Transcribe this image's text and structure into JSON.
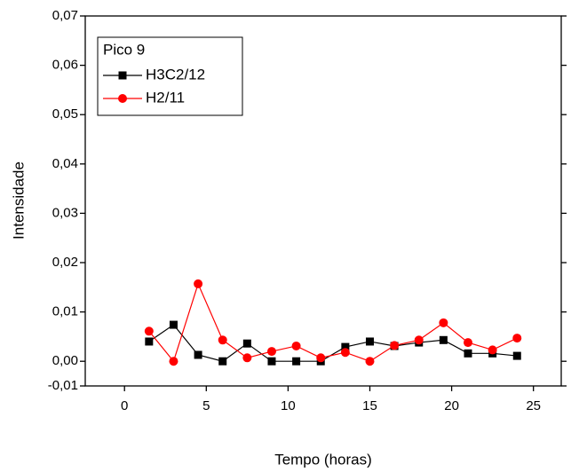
{
  "chart_data": {
    "type": "line",
    "x_label": "Tempo (horas)",
    "y_label": "Intensidade",
    "legend_title": "Pico 9",
    "legend": "top-left",
    "x": [
      1.5,
      3,
      4.5,
      6,
      7.5,
      9,
      10.5,
      12,
      13.5,
      15,
      16.5,
      18,
      19.5,
      21,
      22.5,
      24
    ],
    "series": [
      {
        "name": "H3C2/12",
        "color": "#000000",
        "marker": "square",
        "values": [
          0.004,
          0.0074,
          0.0013,
          0,
          0.0036,
          0,
          0,
          0,
          0.0029,
          0.004,
          0.0031,
          0.0038,
          0.0043,
          0.0016,
          0.0016,
          0.0011
        ]
      },
      {
        "name": "H2/11",
        "color": "#ff0000",
        "marker": "circle",
        "values": [
          0.0061,
          0,
          0.0157,
          0.0043,
          0.0007,
          0.002,
          0.0031,
          0.0007,
          0.0018,
          0,
          0.0032,
          0.0043,
          0.0078,
          0.0038,
          0.0023,
          0.0047
        ]
      }
    ],
    "xlim": [
      -2.4,
      26.7
    ],
    "xticks": [
      0,
      5,
      10,
      15,
      20,
      25
    ],
    "ylim": [
      -0.005,
      0.07
    ],
    "yticks": [
      {
        "value": -0.005,
        "label": "-0,01"
      },
      {
        "value": 0,
        "label": "0,00"
      },
      {
        "value": 0.01,
        "label": "0,01"
      },
      {
        "value": 0.02,
        "label": "0,02"
      },
      {
        "value": 0.03,
        "label": "0,03"
      },
      {
        "value": 0.04,
        "label": "0,04"
      },
      {
        "value": 0.05,
        "label": "0,05"
      },
      {
        "value": 0.06,
        "label": "0,06"
      },
      {
        "value": 0.07,
        "label": "0,07"
      }
    ],
    "grid": false
  }
}
